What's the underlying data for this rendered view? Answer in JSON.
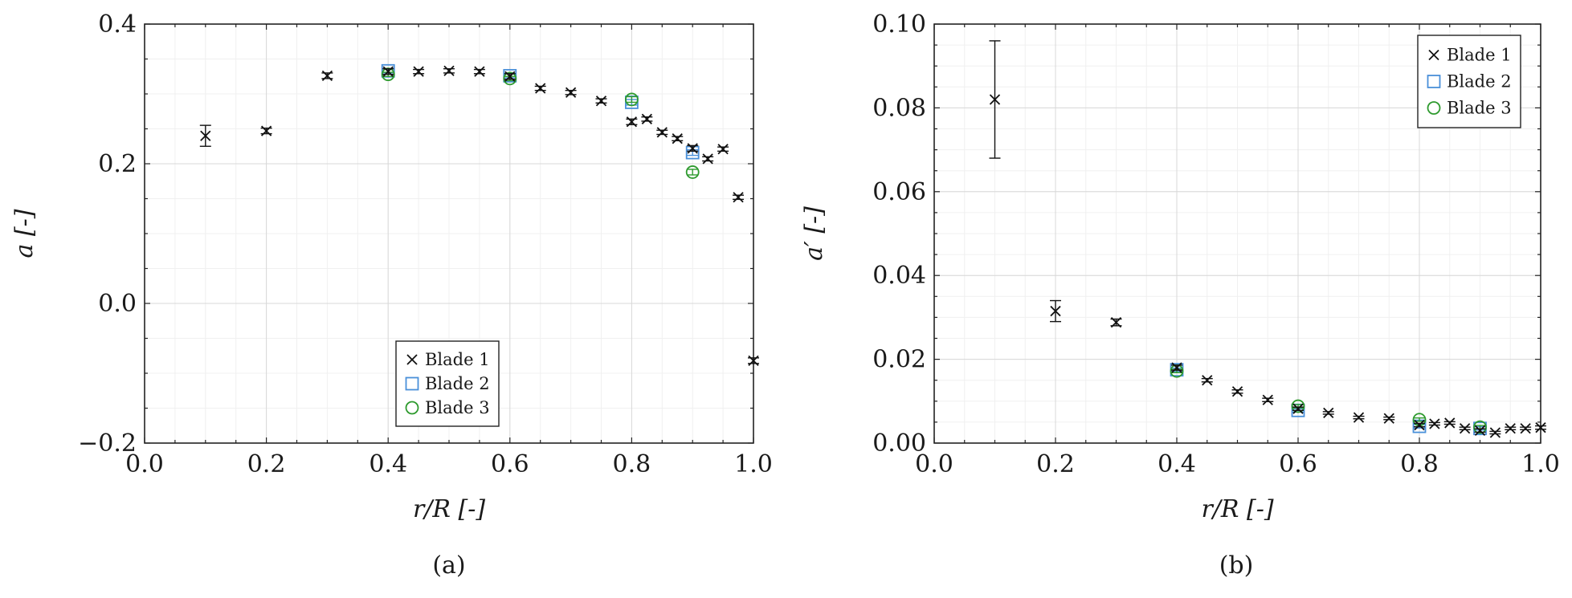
{
  "colors": {
    "blade1": "#111111",
    "blade2": "#4a90d9",
    "blade3": "#2e9a2e"
  },
  "chart_data": [
    {
      "type": "scatter",
      "caption": "(a)",
      "xlabel": "r/R [-]",
      "ylabel": "a [-]",
      "xlim": [
        0.0,
        1.0
      ],
      "ylim": [
        -0.2,
        0.4
      ],
      "xticks": [
        0.0,
        0.2,
        0.4,
        0.6,
        0.8,
        1.0
      ],
      "xtick_labels": [
        "0.0",
        "0.2",
        "0.4",
        "0.6",
        "0.8",
        "1.0"
      ],
      "yticks": [
        -0.2,
        0.0,
        0.2,
        0.4
      ],
      "ytick_labels": [
        "−0.2",
        "0.0",
        "0.2",
        "0.4"
      ],
      "grid": true,
      "legend_position": "bottom-center",
      "series": [
        {
          "name": "Blade 1",
          "marker": "x",
          "x": [
            0.1,
            0.2,
            0.3,
            0.4,
            0.45,
            0.5,
            0.55,
            0.6,
            0.65,
            0.7,
            0.75,
            0.8,
            0.825,
            0.85,
            0.875,
            0.9,
            0.925,
            0.95,
            0.975,
            1.0
          ],
          "y": [
            0.24,
            0.247,
            0.326,
            0.332,
            0.332,
            0.333,
            0.332,
            0.325,
            0.308,
            0.302,
            0.29,
            0.26,
            0.264,
            0.245,
            0.236,
            0.222,
            0.207,
            0.221,
            0.152,
            -0.082
          ],
          "yerr": [
            0.015,
            0.004,
            0.004,
            0.004,
            0.003,
            0.003,
            0.003,
            0.004,
            0.003,
            0.003,
            0.003,
            0.004,
            0.003,
            0.003,
            0.003,
            0.004,
            0.003,
            0.003,
            0.003,
            0.004
          ]
        },
        {
          "name": "Blade 2",
          "marker": "square",
          "x": [
            0.4,
            0.6,
            0.8,
            0.9
          ],
          "y": [
            0.333,
            0.326,
            0.288,
            0.216
          ],
          "yerr": [
            0.003,
            0.003,
            0.004,
            0.004
          ]
        },
        {
          "name": "Blade 3",
          "marker": "circle",
          "x": [
            0.4,
            0.6,
            0.8,
            0.9
          ],
          "y": [
            0.328,
            0.322,
            0.292,
            0.188
          ],
          "yerr": [
            0.003,
            0.003,
            0.004,
            0.004
          ]
        }
      ]
    },
    {
      "type": "scatter",
      "caption": "(b)",
      "xlabel": "r/R [-]",
      "ylabel": "a′ [-]",
      "xlim": [
        0.0,
        1.0
      ],
      "ylim": [
        0.0,
        0.1
      ],
      "xticks": [
        0.0,
        0.2,
        0.4,
        0.6,
        0.8,
        1.0
      ],
      "xtick_labels": [
        "0.0",
        "0.2",
        "0.4",
        "0.6",
        "0.8",
        "1.0"
      ],
      "yticks": [
        0.0,
        0.02,
        0.04,
        0.06,
        0.08,
        0.1
      ],
      "ytick_labels": [
        "0.00",
        "0.02",
        "0.04",
        "0.06",
        "0.08",
        "0.10"
      ],
      "grid": true,
      "legend_position": "top-right",
      "series": [
        {
          "name": "Blade 1",
          "marker": "x",
          "x": [
            0.1,
            0.2,
            0.3,
            0.4,
            0.45,
            0.5,
            0.55,
            0.6,
            0.65,
            0.7,
            0.75,
            0.8,
            0.825,
            0.85,
            0.875,
            0.9,
            0.925,
            0.95,
            0.975,
            1.0
          ],
          "y": [
            0.082,
            0.0315,
            0.0288,
            0.018,
            0.015,
            0.0123,
            0.0103,
            0.0082,
            0.0072,
            0.0061,
            0.0059,
            0.0043,
            0.0046,
            0.0048,
            0.0035,
            0.003,
            0.0025,
            0.0035,
            0.0035,
            0.0037
          ],
          "yerr": [
            0.014,
            0.0025,
            0.0008,
            0.0006,
            0.0004,
            0.0004,
            0.0004,
            0.0004,
            0.0003,
            0.0003,
            0.0003,
            0.0004,
            0.0003,
            0.0003,
            0.0003,
            0.0004,
            0.0003,
            0.0003,
            0.0003,
            0.0004
          ]
        },
        {
          "name": "Blade 2",
          "marker": "square",
          "x": [
            0.4,
            0.6,
            0.8,
            0.9
          ],
          "y": [
            0.0175,
            0.0078,
            0.004,
            0.0035
          ],
          "yerr": [
            0.0004,
            0.0004,
            0.0004,
            0.0004
          ]
        },
        {
          "name": "Blade 3",
          "marker": "circle",
          "x": [
            0.4,
            0.6,
            0.8,
            0.9
          ],
          "y": [
            0.0172,
            0.0088,
            0.0056,
            0.0038
          ],
          "yerr": [
            0.0004,
            0.0004,
            0.0004,
            0.0004
          ]
        }
      ]
    }
  ]
}
